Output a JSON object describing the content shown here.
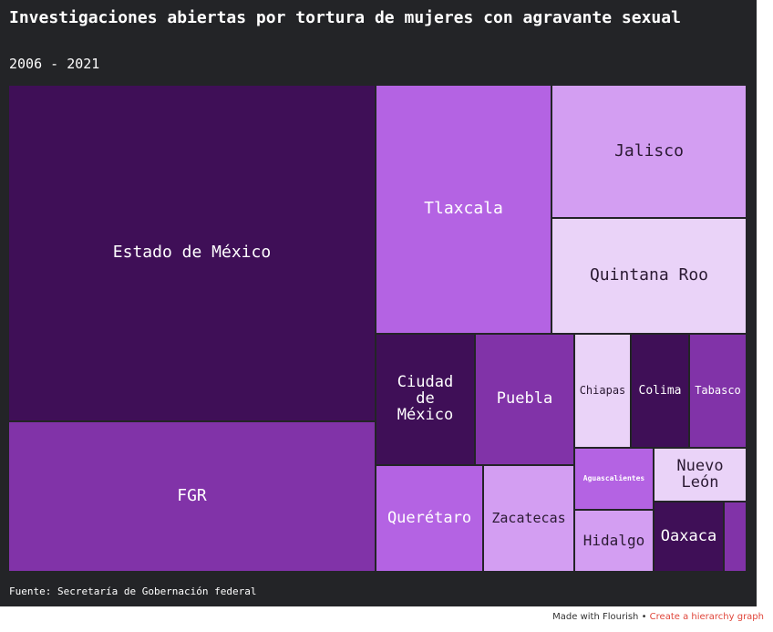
{
  "header": {
    "title": "Investigaciones abiertas por tortura de mujeres con agravante sexual",
    "subtitle": "2006 - 2021"
  },
  "source": "Fuente: Secretaría de Gobernación federal",
  "footer": {
    "made_with": "Made with Flourish",
    "separator": " • ",
    "link_text": "Create a hierarchy graph"
  },
  "colors": {
    "background": "#232427",
    "darkest": "#3f0f57",
    "dark": "#8133a8",
    "medium": "#b463e3",
    "light": "#d39ef2",
    "lightest": "#ead3f8"
  },
  "chart_data": {
    "type": "treemap",
    "title": "Investigaciones abiertas por tortura de mujeres con agravante sexual",
    "subtitle": "2006 - 2021",
    "items": [
      {
        "label": "Estado de México",
        "value": 149,
        "color": "#3f0f57",
        "text_color": "#ffffff"
      },
      {
        "label": "FGR",
        "value": 44,
        "color": "#8133a8",
        "text_color": "#ffffff"
      },
      {
        "label": "Tlaxcala",
        "value": 44,
        "color": "#b463e3",
        "text_color": "#ffffff"
      },
      {
        "label": "Jalisco",
        "value": 26,
        "color": "#d39ef2",
        "text_color": "#2b1a33"
      },
      {
        "label": "Quintana Roo",
        "value": 25,
        "color": "#ead3f8",
        "text_color": "#2b1a33"
      },
      {
        "label": "Ciudad\nde\nMéxico",
        "value": 11,
        "color": "#3f0f57",
        "text_color": "#ffffff"
      },
      {
        "label": "Puebla",
        "value": 11,
        "color": "#8133a8",
        "text_color": "#ffffff"
      },
      {
        "label": "Chiapas",
        "value": 6,
        "color": "#ead3f8",
        "text_color": "#2b1a33"
      },
      {
        "label": "Colima",
        "value": 6,
        "color": "#3f0f57",
        "text_color": "#ffffff"
      },
      {
        "label": "Tabasco",
        "value": 6,
        "color": "#8133a8",
        "text_color": "#ffffff"
      },
      {
        "label": "Aguascalientes",
        "value": 4,
        "color": "#b463e3",
        "text_color": "#ffffff"
      },
      {
        "label": "Nuevo\nLeón",
        "value": 3,
        "color": "#ead3f8",
        "text_color": "#2b1a33"
      },
      {
        "label": "Querétaro",
        "value": 10,
        "color": "#b463e3",
        "text_color": "#ffffff"
      },
      {
        "label": "Zacatecas",
        "value": 8,
        "color": "#d39ef2",
        "text_color": "#2b1a33"
      },
      {
        "label": "Hidalgo",
        "value": 4,
        "color": "#d39ef2",
        "text_color": "#2b1a33"
      },
      {
        "label": "Oaxaca",
        "value": 4,
        "color": "#3f0f57",
        "text_color": "#ffffff"
      },
      {
        "label": "",
        "value": 1,
        "color": "#8133a8",
        "text_color": "#ffffff"
      }
    ]
  }
}
